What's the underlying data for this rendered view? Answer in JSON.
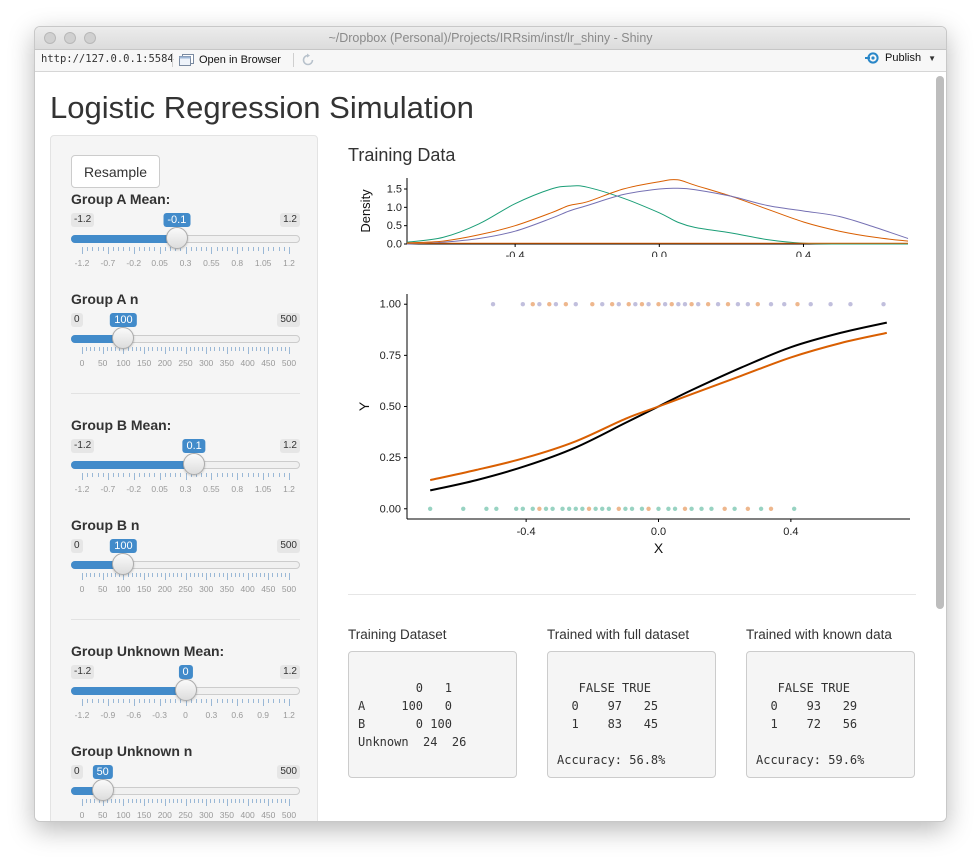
{
  "window": {
    "title": "~/Dropbox (Personal)/Projects/IRRsim/inst/lr_shiny - Shiny",
    "url": "http://127.0.0.1:5584",
    "open_in_browser": "Open in Browser",
    "publish": "Publish"
  },
  "page": {
    "title": "Logistic Regression Simulation"
  },
  "sidebar": {
    "resample_label": "Resample",
    "controls": [
      {
        "label": "Group A Mean:",
        "min": "-1.2",
        "max": "1.2",
        "value": "-0.1",
        "fraction": 0.4583,
        "ticks": [
          "-1.2",
          "-0.7",
          "-0.2",
          "0.05",
          "0.3",
          "0.55",
          "0.8",
          "1.05",
          "1.2"
        ]
      },
      {
        "label": "Group A n",
        "min": "0",
        "max": "500",
        "value": "100",
        "fraction": 0.2,
        "ticks": [
          "0",
          "50",
          "100",
          "150",
          "200",
          "250",
          "300",
          "350",
          "400",
          "450",
          "500"
        ]
      },
      {
        "label": "Group B Mean:",
        "min": "-1.2",
        "max": "1.2",
        "value": "0.1",
        "fraction": 0.5417,
        "ticks": [
          "-1.2",
          "-0.7",
          "-0.2",
          "0.05",
          "0.3",
          "0.55",
          "0.8",
          "1.05",
          "1.2"
        ]
      },
      {
        "label": "Group B n",
        "min": "0",
        "max": "500",
        "value": "100",
        "fraction": 0.2,
        "ticks": [
          "0",
          "50",
          "100",
          "150",
          "200",
          "250",
          "300",
          "350",
          "400",
          "450",
          "500"
        ]
      },
      {
        "label": "Group Unknown Mean:",
        "min": "-1.2",
        "max": "1.2",
        "value": "0",
        "fraction": 0.5,
        "ticks": [
          "-1.2",
          "-0.9",
          "-0.6",
          "-0.3",
          "0",
          "0.3",
          "0.6",
          "0.9",
          "1.2"
        ]
      },
      {
        "label": "Group Unknown n",
        "min": "0",
        "max": "500",
        "value": "50",
        "fraction": 0.1,
        "ticks": [
          "0",
          "50",
          "100",
          "150",
          "200",
          "250",
          "300",
          "350",
          "400",
          "450",
          "500"
        ]
      }
    ]
  },
  "main": {
    "heading": "Training Data",
    "outputs": [
      {
        "title": "Training Dataset",
        "lines": [
          "",
          "        0   1",
          "A     100   0",
          "B       0 100",
          "Unknown  24  26"
        ]
      },
      {
        "title": "Trained with full dataset",
        "lines": [
          "",
          "   FALSE TRUE",
          "  0    97   25",
          "  1    83   45",
          "",
          "Accuracy: 56.8%"
        ]
      },
      {
        "title": "Trained with known data",
        "lines": [
          "",
          "   FALSE TRUE",
          "  0    93   29",
          "  1    72   56",
          "",
          "Accuracy: 59.6%"
        ]
      }
    ]
  },
  "colors": {
    "group_a": "#1b9e77",
    "group_b": "#7570b3",
    "unknown": "#d95f02",
    "model_full": "#000000",
    "model_known": "#d95f02",
    "accent": "#428bca"
  },
  "chart_data": [
    {
      "type": "line",
      "title": "",
      "xlabel": "",
      "ylabel": "Density",
      "xlim": [
        -0.7,
        0.69
      ],
      "ylim": [
        0,
        1.8
      ],
      "x_ticks": [
        "-0.4",
        "0.0",
        "0.4"
      ],
      "y_ticks": [
        "0.0",
        "0.5",
        "1.0",
        "1.5"
      ],
      "x": [
        -0.7,
        -0.6,
        -0.5,
        -0.4,
        -0.3,
        -0.25,
        -0.2,
        -0.1,
        0.0,
        0.05,
        0.1,
        0.2,
        0.3,
        0.4,
        0.5,
        0.6,
        0.69
      ],
      "series": [
        {
          "color": "#1b9e77",
          "values": [
            0.05,
            0.18,
            0.55,
            1.1,
            1.5,
            1.58,
            1.55,
            1.25,
            0.85,
            0.6,
            0.45,
            0.3,
            0.12,
            0.02,
            0.0,
            0.0,
            0.0
          ]
        },
        {
          "color": "#d95f02",
          "values": [
            0.03,
            0.08,
            0.25,
            0.5,
            0.85,
            1.05,
            1.15,
            1.5,
            1.7,
            1.75,
            1.6,
            1.3,
            0.95,
            0.6,
            0.35,
            0.18,
            0.08
          ]
        },
        {
          "color": "#7570b3",
          "values": [
            0.0,
            0.05,
            0.15,
            0.35,
            0.7,
            0.9,
            1.05,
            1.35,
            1.5,
            1.52,
            1.48,
            1.3,
            1.05,
            0.9,
            0.75,
            0.45,
            0.15
          ]
        },
        {
          "color": "#d95f02",
          "values": [
            0.02,
            0.02,
            0.02,
            0.02,
            0.02,
            0.02,
            0.02,
            0.02,
            0.02,
            0.02,
            0.02,
            0.02,
            0.02,
            0.02,
            0.02,
            0.02,
            0.02
          ]
        }
      ]
    },
    {
      "type": "scatter",
      "title": "",
      "xlabel": "X",
      "ylabel": "Y",
      "xlim": [
        -0.76,
        0.76
      ],
      "ylim": [
        -0.05,
        1.05
      ],
      "x_ticks": [
        "-0.4",
        "0.0",
        "0.4"
      ],
      "y_ticks": [
        "0.00",
        "0.25",
        "0.50",
        "0.75",
        "1.00"
      ],
      "points_y1": [
        {
          "x": -0.5,
          "c": "#7570b3"
        },
        {
          "x": -0.41,
          "c": "#7570b3"
        },
        {
          "x": -0.38,
          "c": "#d95f02"
        },
        {
          "x": -0.36,
          "c": "#7570b3"
        },
        {
          "x": -0.33,
          "c": "#d95f02"
        },
        {
          "x": -0.31,
          "c": "#7570b3"
        },
        {
          "x": -0.28,
          "c": "#d95f02"
        },
        {
          "x": -0.25,
          "c": "#7570b3"
        },
        {
          "x": -0.2,
          "c": "#d95f02"
        },
        {
          "x": -0.17,
          "c": "#7570b3"
        },
        {
          "x": -0.14,
          "c": "#d95f02"
        },
        {
          "x": -0.12,
          "c": "#7570b3"
        },
        {
          "x": -0.09,
          "c": "#d95f02"
        },
        {
          "x": -0.07,
          "c": "#7570b3"
        },
        {
          "x": -0.05,
          "c": "#d95f02"
        },
        {
          "x": -0.03,
          "c": "#7570b3"
        },
        {
          "x": 0.0,
          "c": "#d95f02"
        },
        {
          "x": 0.02,
          "c": "#7570b3"
        },
        {
          "x": 0.04,
          "c": "#d95f02"
        },
        {
          "x": 0.06,
          "c": "#7570b3"
        },
        {
          "x": 0.08,
          "c": "#7570b3"
        },
        {
          "x": 0.1,
          "c": "#d95f02"
        },
        {
          "x": 0.12,
          "c": "#7570b3"
        },
        {
          "x": 0.15,
          "c": "#d95f02"
        },
        {
          "x": 0.18,
          "c": "#7570b3"
        },
        {
          "x": 0.21,
          "c": "#d95f02"
        },
        {
          "x": 0.24,
          "c": "#7570b3"
        },
        {
          "x": 0.27,
          "c": "#7570b3"
        },
        {
          "x": 0.3,
          "c": "#d95f02"
        },
        {
          "x": 0.34,
          "c": "#7570b3"
        },
        {
          "x": 0.38,
          "c": "#7570b3"
        },
        {
          "x": 0.42,
          "c": "#d95f02"
        },
        {
          "x": 0.46,
          "c": "#7570b3"
        },
        {
          "x": 0.52,
          "c": "#7570b3"
        },
        {
          "x": 0.58,
          "c": "#7570b3"
        },
        {
          "x": 0.68,
          "c": "#7570b3"
        }
      ],
      "points_y0": [
        {
          "x": -0.69,
          "c": "#1b9e77"
        },
        {
          "x": -0.59,
          "c": "#1b9e77"
        },
        {
          "x": -0.52,
          "c": "#1b9e77"
        },
        {
          "x": -0.49,
          "c": "#1b9e77"
        },
        {
          "x": -0.43,
          "c": "#1b9e77"
        },
        {
          "x": -0.41,
          "c": "#1b9e77"
        },
        {
          "x": -0.38,
          "c": "#1b9e77"
        },
        {
          "x": -0.36,
          "c": "#d95f02"
        },
        {
          "x": -0.34,
          "c": "#1b9e77"
        },
        {
          "x": -0.32,
          "c": "#1b9e77"
        },
        {
          "x": -0.29,
          "c": "#1b9e77"
        },
        {
          "x": -0.27,
          "c": "#1b9e77"
        },
        {
          "x": -0.25,
          "c": "#1b9e77"
        },
        {
          "x": -0.23,
          "c": "#1b9e77"
        },
        {
          "x": -0.21,
          "c": "#d95f02"
        },
        {
          "x": -0.19,
          "c": "#1b9e77"
        },
        {
          "x": -0.17,
          "c": "#1b9e77"
        },
        {
          "x": -0.15,
          "c": "#1b9e77"
        },
        {
          "x": -0.12,
          "c": "#d95f02"
        },
        {
          "x": -0.1,
          "c": "#1b9e77"
        },
        {
          "x": -0.08,
          "c": "#1b9e77"
        },
        {
          "x": -0.05,
          "c": "#1b9e77"
        },
        {
          "x": -0.03,
          "c": "#d95f02"
        },
        {
          "x": 0.0,
          "c": "#1b9e77"
        },
        {
          "x": 0.03,
          "c": "#1b9e77"
        },
        {
          "x": 0.05,
          "c": "#1b9e77"
        },
        {
          "x": 0.08,
          "c": "#d95f02"
        },
        {
          "x": 0.1,
          "c": "#1b9e77"
        },
        {
          "x": 0.13,
          "c": "#1b9e77"
        },
        {
          "x": 0.16,
          "c": "#1b9e77"
        },
        {
          "x": 0.2,
          "c": "#d95f02"
        },
        {
          "x": 0.23,
          "c": "#1b9e77"
        },
        {
          "x": 0.27,
          "c": "#d95f02"
        },
        {
          "x": 0.31,
          "c": "#1b9e77"
        },
        {
          "x": 0.34,
          "c": "#d95f02"
        },
        {
          "x": 0.41,
          "c": "#1b9e77"
        }
      ],
      "curves": [
        {
          "color": "#000000",
          "x": [
            -0.69,
            -0.55,
            -0.4,
            -0.25,
            -0.1,
            0.0,
            0.1,
            0.25,
            0.4,
            0.55,
            0.69
          ],
          "y": [
            0.09,
            0.14,
            0.21,
            0.3,
            0.42,
            0.5,
            0.58,
            0.69,
            0.79,
            0.86,
            0.91
          ]
        },
        {
          "color": "#d95f02",
          "x": [
            -0.69,
            -0.55,
            -0.4,
            -0.25,
            -0.1,
            0.0,
            0.1,
            0.25,
            0.4,
            0.55,
            0.69
          ],
          "y": [
            0.14,
            0.19,
            0.25,
            0.33,
            0.44,
            0.5,
            0.56,
            0.65,
            0.74,
            0.81,
            0.86
          ]
        }
      ]
    }
  ]
}
